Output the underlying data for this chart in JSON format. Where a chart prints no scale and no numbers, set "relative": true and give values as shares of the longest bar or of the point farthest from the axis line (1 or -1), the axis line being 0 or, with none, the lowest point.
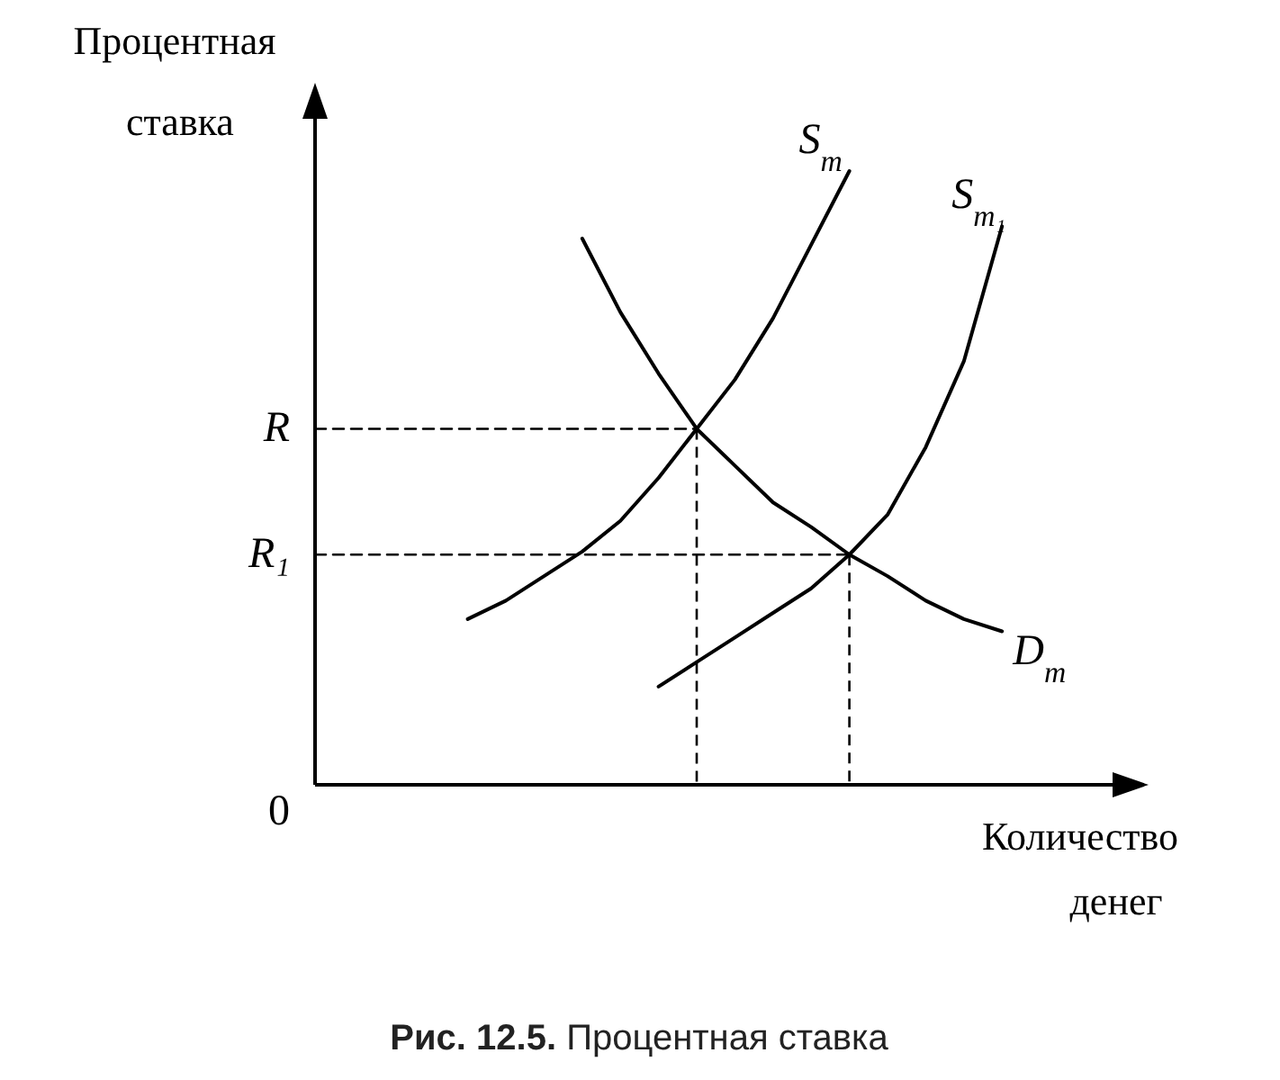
{
  "chart_data": {
    "type": "line",
    "relative": true,
    "title": "Рис. 12.5. Процентная ставка",
    "ylabel": "Процентная ставка",
    "xlabel": "Количество денег",
    "categories": [
      null,
      null,
      null,
      null,
      null,
      null,
      null,
      null,
      null,
      null,
      null,
      null,
      null,
      null,
      null,
      null,
      null,
      null,
      null,
      null,
      null
    ],
    "series": [
      {
        "name": "S$_{m}$",
        "color": "#000000",
        "values": [
          null,
          null,
          null,
          null,
          0.27,
          0.3,
          0.34,
          0.38,
          0.43,
          0.5,
          0.58,
          0.66,
          0.76,
          0.88,
          1.0,
          null,
          null,
          null,
          null,
          null,
          null
        ]
      },
      {
        "name": "S$_{m₁}$",
        "color": "#000000",
        "values": [
          null,
          null,
          null,
          null,
          null,
          null,
          null,
          null,
          null,
          0.16,
          0.2,
          0.24,
          0.28,
          0.32,
          0.375,
          0.44,
          0.55,
          0.69,
          0.91,
          null,
          null
        ]
      },
      {
        "name": "D$_{m}$",
        "color": "#000000",
        "values": [
          null,
          null,
          null,
          null,
          null,
          null,
          null,
          0.89,
          0.77,
          0.67,
          0.58,
          0.52,
          0.46,
          0.42,
          0.375,
          0.34,
          0.3,
          0.27,
          0.25,
          null,
          null
        ]
      },
      {
        "name": "R",
        "color": "#000000",
        "line_style": "dashed",
        "values": [
          0.58,
          0.58,
          0.58,
          0.58,
          0.58,
          0.58,
          0.58,
          0.58,
          0.58,
          0.58,
          0.58,
          null,
          null,
          null,
          null,
          null,
          null,
          null,
          null,
          null,
          null
        ]
      },
      {
        "name": "R₁",
        "color": "#000000",
        "line_style": "dashed",
        "values": [
          0.375,
          0.375,
          0.375,
          0.375,
          0.375,
          0.375,
          0.375,
          0.375,
          0.375,
          0.375,
          0.375,
          0.375,
          0.375,
          0.375,
          0.375,
          null,
          null,
          null,
          null,
          null,
          null
        ]
      }
    ],
    "annotations": [
      "0"
    ]
  }
}
